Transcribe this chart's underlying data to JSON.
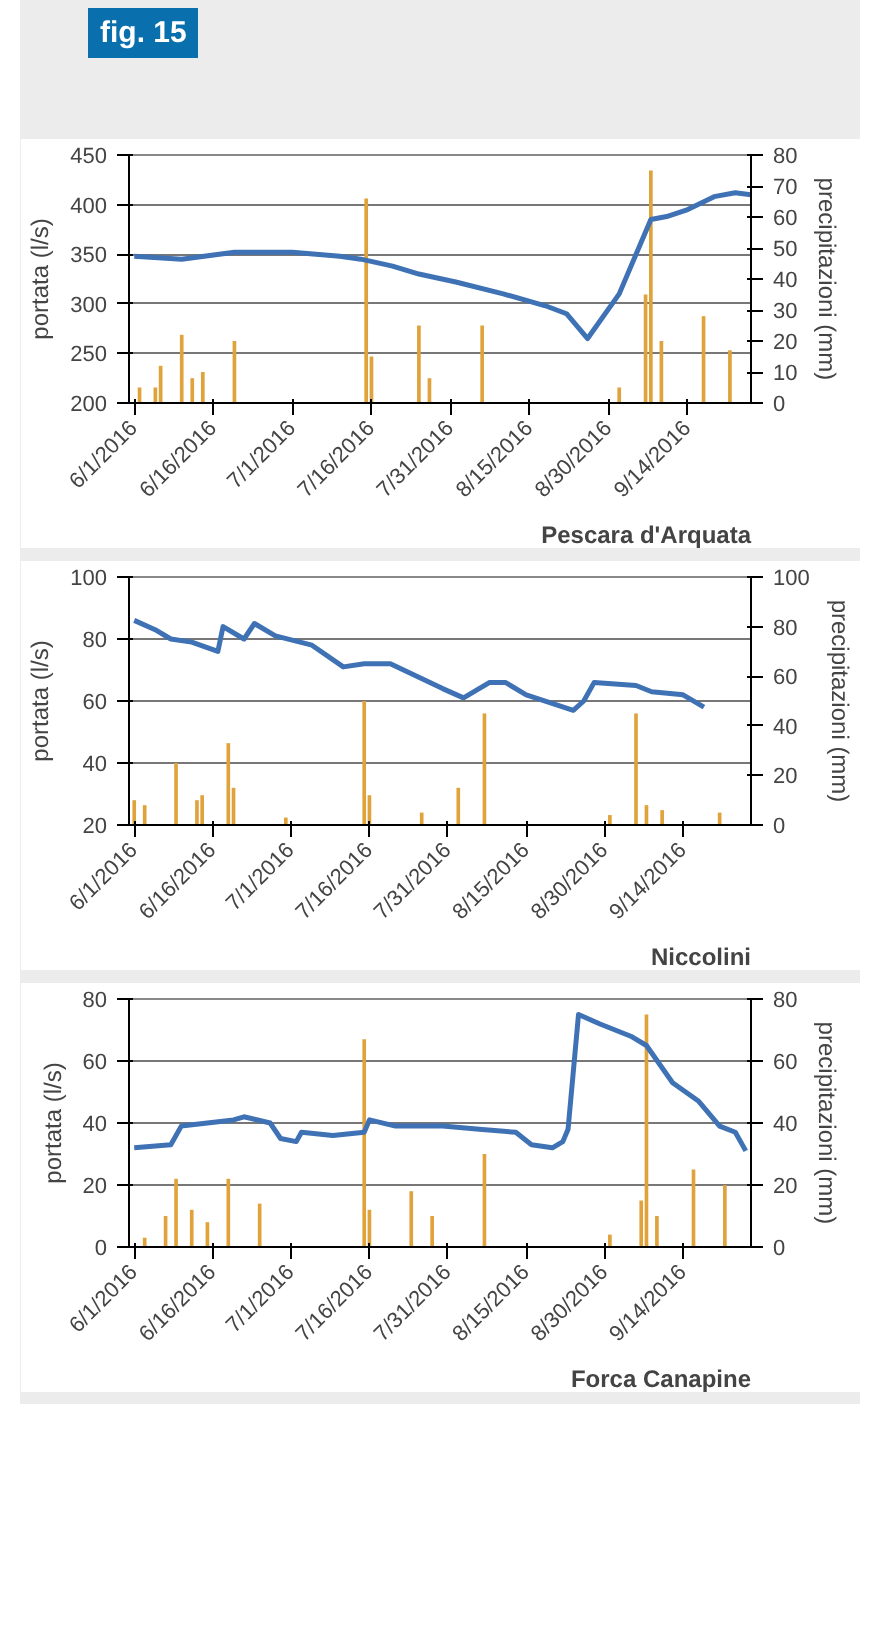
{
  "chart_data": [
    {
      "type": "line",
      "title": "fig. 15",
      "xlabel": null,
      "ylabel": "portata (l/s)",
      "y2label": "precipitazioni (mm)",
      "annotations": [
        "Pescara d'Arquata"
      ],
      "xlim": [
        "2016-05-31",
        "2016-09-26"
      ],
      "xticks": [
        {
          "value": "2016-06-01",
          "label": "6/1/2016"
        },
        {
          "value": "2016-06-16",
          "label": "6/16/2016"
        },
        {
          "value": "2016-07-01",
          "label": "7/1/2016"
        },
        {
          "value": "2016-07-16",
          "label": "7/16/2016"
        },
        {
          "value": "2016-07-31",
          "label": "7/31/2016"
        },
        {
          "value": "2016-08-15",
          "label": "8/15/2016"
        },
        {
          "value": "2016-08-30",
          "label": "8/30/2016"
        },
        {
          "value": "2016-09-14",
          "label": "9/14/2016"
        }
      ],
      "ylim": [
        200,
        450
      ],
      "yticks": [
        200,
        250,
        300,
        350,
        400,
        450
      ],
      "y2lim": [
        0,
        80
      ],
      "y2ticks": [
        0,
        10,
        20,
        30,
        40,
        50,
        60,
        70,
        80
      ],
      "grid": "y",
      "series": [
        {
          "type": "bar",
          "axis": "y2",
          "color": "#e0a23a",
          "x": [
            "2016-06-02",
            "2016-06-05",
            "2016-06-06",
            "2016-06-10",
            "2016-06-12",
            "2016-06-14",
            "2016-06-20",
            "2016-07-15",
            "2016-07-16",
            "2016-07-25",
            "2016-07-27",
            "2016-08-06",
            "2016-09-01",
            "2016-09-06",
            "2016-09-07",
            "2016-09-09",
            "2016-09-17",
            "2016-09-22"
          ],
          "values": [
            5,
            5,
            12,
            22,
            8,
            10,
            20,
            66,
            15,
            25,
            8,
            25,
            5,
            35,
            75,
            20,
            28,
            17
          ]
        },
        {
          "color": "#3f72b5",
          "x": [
            "2016-06-01",
            "2016-06-10",
            "2016-06-20",
            "2016-07-01",
            "2016-07-10",
            "2016-07-14",
            "2016-07-20",
            "2016-07-25",
            "2016-08-01",
            "2016-08-10",
            "2016-08-18",
            "2016-08-22",
            "2016-08-26",
            "2016-09-01",
            "2016-09-07",
            "2016-09-10",
            "2016-09-14",
            "2016-09-19",
            "2016-09-23",
            "2016-09-26"
          ],
          "values": [
            348,
            345,
            352,
            352,
            348,
            345,
            338,
            330,
            322,
            310,
            298,
            290,
            265,
            310,
            385,
            388,
            395,
            408,
            412,
            410
          ]
        }
      ]
    },
    {
      "type": "line",
      "ylabel": "portata (l/s)",
      "y2label": "precipitazioni (mm)",
      "annotations": [
        "Niccolini"
      ],
      "xlim": [
        "2016-05-31",
        "2016-09-27"
      ],
      "xticks": [
        {
          "value": "2016-06-01",
          "label": "6/1/2016"
        },
        {
          "value": "2016-06-16",
          "label": "6/16/2016"
        },
        {
          "value": "2016-07-01",
          "label": "7/1/2016"
        },
        {
          "value": "2016-07-16",
          "label": "7/16/2016"
        },
        {
          "value": "2016-07-31",
          "label": "7/31/2016"
        },
        {
          "value": "2016-08-15",
          "label": "8/15/2016"
        },
        {
          "value": "2016-08-30",
          "label": "8/30/2016"
        },
        {
          "value": "2016-09-14",
          "label": "9/14/2016"
        }
      ],
      "ylim": [
        20,
        100
      ],
      "yticks": [
        20,
        40,
        60,
        80,
        100
      ],
      "y2lim": [
        0,
        100
      ],
      "y2ticks": [
        0,
        20,
        40,
        60,
        80,
        100
      ],
      "grid": "y",
      "series": [
        {
          "type": "bar",
          "axis": "y2",
          "color": "#e0a23a",
          "x": [
            "2016-06-01",
            "2016-06-03",
            "2016-06-09",
            "2016-06-13",
            "2016-06-14",
            "2016-06-19",
            "2016-06-20",
            "2016-06-30",
            "2016-07-15",
            "2016-07-16",
            "2016-07-26",
            "2016-08-02",
            "2016-08-07",
            "2016-08-31",
            "2016-09-05",
            "2016-09-07",
            "2016-09-10",
            "2016-09-21"
          ],
          "values": [
            10,
            8,
            25,
            10,
            12,
            33,
            15,
            3,
            50,
            12,
            5,
            15,
            45,
            4,
            45,
            8,
            6,
            5
          ]
        },
        {
          "color": "#3f72b5",
          "x": [
            "2016-06-01",
            "2016-06-05",
            "2016-06-08",
            "2016-06-12",
            "2016-06-17",
            "2016-06-18",
            "2016-06-22",
            "2016-06-24",
            "2016-06-28",
            "2016-07-05",
            "2016-07-11",
            "2016-07-15",
            "2016-07-20",
            "2016-07-30",
            "2016-08-03",
            "2016-08-08",
            "2016-08-11",
            "2016-08-15",
            "2016-08-24",
            "2016-08-26",
            "2016-08-28",
            "2016-09-05",
            "2016-09-08",
            "2016-09-14",
            "2016-09-18"
          ],
          "values": [
            86,
            83,
            80,
            79,
            76,
            84,
            80,
            85,
            81,
            78,
            71,
            72,
            72,
            64,
            61,
            66,
            66,
            62,
            57,
            60,
            66,
            65,
            63,
            62,
            58
          ]
        }
      ]
    },
    {
      "type": "line",
      "ylabel": "portata (l/s)",
      "y2label": "precipitazioni (mm)",
      "annotations": [
        "Forca Canapine"
      ],
      "xlim": [
        "2016-05-31",
        "2016-09-27"
      ],
      "xticks": [
        {
          "value": "2016-06-01",
          "label": "6/1/2016"
        },
        {
          "value": "2016-06-16",
          "label": "6/16/2016"
        },
        {
          "value": "2016-07-01",
          "label": "7/1/2016"
        },
        {
          "value": "2016-07-16",
          "label": "7/16/2016"
        },
        {
          "value": "2016-07-31",
          "label": "7/31/2016"
        },
        {
          "value": "2016-08-15",
          "label": "8/15/2016"
        },
        {
          "value": "2016-08-30",
          "label": "8/30/2016"
        },
        {
          "value": "2016-09-14",
          "label": "9/14/2016"
        }
      ],
      "ylim": [
        0,
        80
      ],
      "yticks": [
        0,
        20,
        40,
        60,
        80
      ],
      "y2lim": [
        0,
        80
      ],
      "y2ticks": [
        0,
        20,
        40,
        60,
        80
      ],
      "grid": "y",
      "series": [
        {
          "type": "bar",
          "axis": "y2",
          "color": "#e0a23a",
          "x": [
            "2016-06-03",
            "2016-06-07",
            "2016-06-09",
            "2016-06-12",
            "2016-06-15",
            "2016-06-19",
            "2016-06-25",
            "2016-07-15",
            "2016-07-16",
            "2016-07-24",
            "2016-07-28",
            "2016-08-07",
            "2016-08-31",
            "2016-09-06",
            "2016-09-07",
            "2016-09-09",
            "2016-09-16",
            "2016-09-22"
          ],
          "values": [
            3,
            10,
            22,
            12,
            8,
            22,
            14,
            67,
            12,
            18,
            10,
            30,
            4,
            15,
            75,
            10,
            25,
            20
          ]
        },
        {
          "color": "#3f72b5",
          "x": [
            "2016-06-01",
            "2016-06-08",
            "2016-06-10",
            "2016-06-20",
            "2016-06-22",
            "2016-06-27",
            "2016-06-29",
            "2016-07-02",
            "2016-07-03",
            "2016-07-09",
            "2016-07-15",
            "2016-07-16",
            "2016-07-21",
            "2016-07-30",
            "2016-08-06",
            "2016-08-13",
            "2016-08-16",
            "2016-08-20",
            "2016-08-22",
            "2016-08-23",
            "2016-08-25",
            "2016-08-29",
            "2016-09-04",
            "2016-09-07",
            "2016-09-12",
            "2016-09-17",
            "2016-09-21",
            "2016-09-24",
            "2016-09-26"
          ],
          "values": [
            32,
            33,
            39,
            41,
            42,
            40,
            35,
            34,
            37,
            36,
            37,
            41,
            39,
            39,
            38,
            37,
            33,
            32,
            34,
            38,
            75,
            72,
            68,
            65,
            53,
            47,
            39,
            37,
            31
          ]
        }
      ]
    }
  ]
}
